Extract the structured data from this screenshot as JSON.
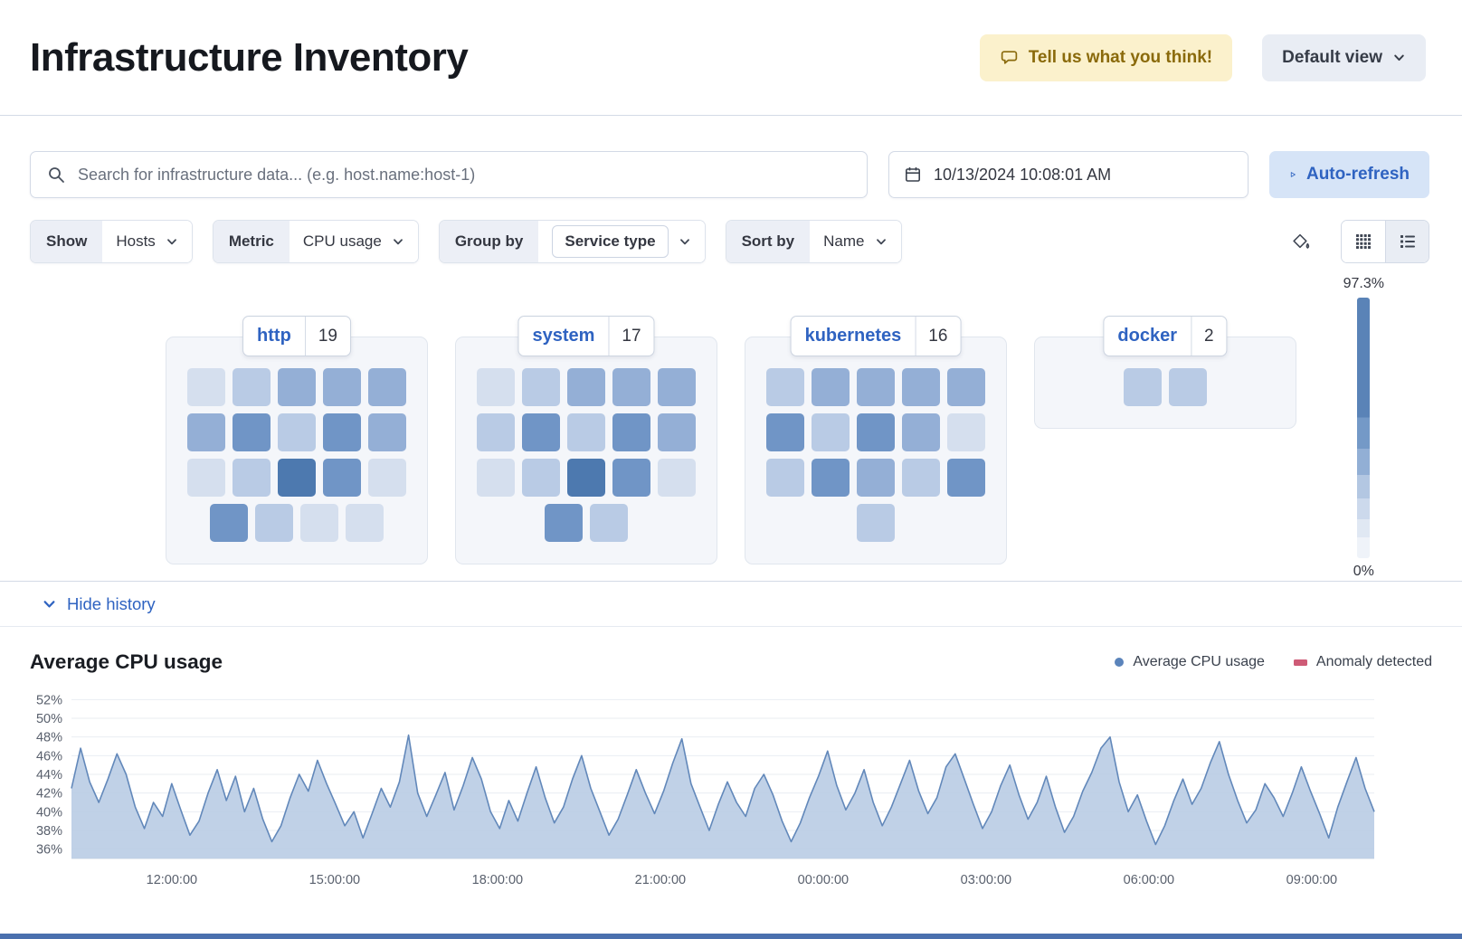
{
  "header": {
    "title": "Infrastructure Inventory",
    "feedback_button": "Tell us what you think!",
    "view_picker": "Default view"
  },
  "toolbar": {
    "search_placeholder": "Search for infrastructure data... (e.g. host.name:host-1)",
    "datetime": "10/13/2024 10:08:01 AM",
    "auto_refresh_label": "Auto-refresh"
  },
  "filters": {
    "show_label": "Show",
    "show_value": "Hosts",
    "metric_label": "Metric",
    "metric_value": "CPU usage",
    "group_by_label": "Group by",
    "group_by_value": "Service type",
    "sort_by_label": "Sort by",
    "sort_by_value": "Name"
  },
  "waffle": {
    "palette": [
      "#eaeff7",
      "#d5dfee",
      "#b9cbe5",
      "#94afd6",
      "#7095c6",
      "#4d79af"
    ],
    "scale_gradient": [
      "#5a83b7 0%",
      "#5a83b7 46%",
      "#7499c7 46%",
      "#7499c7 58%",
      "#92afd5 58%",
      "#92afd5 68%",
      "#b3c7e2 68%",
      "#b3c7e2 77%",
      "#ccd9ec 77%",
      "#ccd9ec 85%",
      "#e0e8f3 85%",
      "#e0e8f3 92%",
      "#eff3f9 92%",
      "#eff3f9 100%"
    ],
    "groups": [
      {
        "name": "http",
        "count": 19,
        "rows": [
          [
            1,
            2,
            3,
            3,
            3
          ],
          [
            3,
            4,
            2,
            4,
            3
          ],
          [
            1,
            2,
            5,
            4,
            1
          ],
          [
            4,
            2,
            1,
            1
          ]
        ]
      },
      {
        "name": "system",
        "count": 17,
        "rows": [
          [
            1,
            2,
            3,
            3,
            3
          ],
          [
            2,
            4,
            2,
            4,
            3
          ],
          [
            1,
            2,
            5,
            4,
            1
          ],
          [
            4,
            2
          ]
        ]
      },
      {
        "name": "kubernetes",
        "count": 16,
        "rows": [
          [
            2,
            3,
            3,
            3,
            3
          ],
          [
            4,
            2,
            4,
            3,
            1
          ],
          [
            2,
            4,
            3,
            2,
            4
          ],
          [
            2
          ]
        ]
      },
      {
        "name": "docker",
        "count": 2,
        "rows": [
          [
            2,
            2
          ]
        ]
      }
    ]
  },
  "legend_scale": {
    "max": "97.3%",
    "min": "0%"
  },
  "history": {
    "toggle_label": "Hide history"
  },
  "chart_data": {
    "type": "area",
    "title": "Average CPU usage",
    "legend": [
      {
        "label": "Average CPU usage",
        "marker": "circle",
        "color": "#5b84bb"
      },
      {
        "label": "Anomaly detected",
        "marker": "rect",
        "color": "#ce5b76"
      }
    ],
    "y_ticks": [
      52,
      50,
      48,
      46,
      44,
      42,
      40,
      38,
      36
    ],
    "y_tick_suffix": "%",
    "ylim": [
      35,
      53
    ],
    "x_ticks": [
      "12:00:00",
      "15:00:00",
      "18:00:00",
      "21:00:00",
      "00:00:00",
      "03:00:00",
      "06:00:00",
      "09:00:00"
    ],
    "x_tick_offset_fraction": 0.077,
    "x_tick_step_fraction": 0.125,
    "grid": true,
    "legend_position": "top-right",
    "line_color": "#6288ba",
    "fill_color": "#b9cce4",
    "values": [
      42.5,
      46.8,
      43.2,
      41.0,
      43.5,
      46.2,
      44.0,
      40.5,
      38.2,
      41.0,
      39.5,
      43.0,
      40.2,
      37.5,
      39.0,
      42.0,
      44.5,
      41.2,
      43.8,
      40.0,
      42.5,
      39.2,
      36.8,
      38.5,
      41.5,
      44.0,
      42.2,
      45.5,
      43.0,
      40.8,
      38.5,
      40.0,
      37.2,
      39.8,
      42.5,
      40.5,
      43.2,
      48.2,
      42.0,
      39.5,
      41.8,
      44.2,
      40.2,
      42.8,
      45.8,
      43.5,
      40.0,
      38.2,
      41.2,
      39.0,
      42.0,
      44.8,
      41.5,
      38.8,
      40.5,
      43.5,
      46.0,
      42.5,
      40.0,
      37.5,
      39.2,
      41.8,
      44.5,
      42.0,
      39.8,
      42.2,
      45.2,
      47.8,
      43.0,
      40.5,
      38.0,
      40.8,
      43.2,
      41.0,
      39.5,
      42.5,
      44.0,
      41.8,
      39.0,
      36.8,
      38.8,
      41.5,
      43.8,
      46.5,
      42.8,
      40.2,
      42.0,
      44.5,
      41.0,
      38.5,
      40.5,
      43.0,
      45.5,
      42.2,
      39.8,
      41.5,
      44.8,
      46.2,
      43.5,
      40.8,
      38.2,
      40.0,
      42.8,
      45.0,
      41.8,
      39.2,
      41.0,
      43.8,
      40.5,
      37.8,
      39.5,
      42.2,
      44.2,
      46.8,
      48.0,
      43.2,
      40.0,
      41.8,
      39.0,
      36.5,
      38.5,
      41.2,
      43.5,
      40.8,
      42.5,
      45.2,
      47.5,
      44.0,
      41.2,
      38.8,
      40.2,
      43.0,
      41.5,
      39.5,
      42.0,
      44.8,
      42.2,
      39.8,
      37.2,
      40.5,
      43.2,
      45.8,
      42.5,
      40.0
    ]
  }
}
